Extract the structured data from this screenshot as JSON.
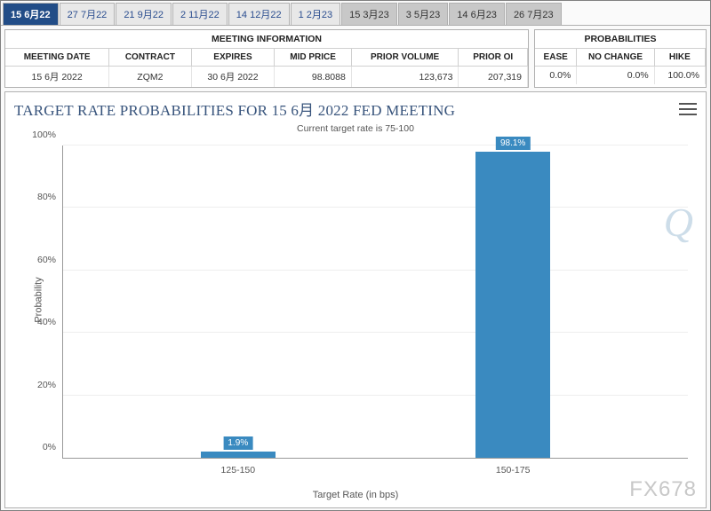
{
  "tabs": [
    {
      "label": "15 6月22",
      "state": "active"
    },
    {
      "label": "27 7月22",
      "state": "normal"
    },
    {
      "label": "21 9月22",
      "state": "normal"
    },
    {
      "label": "2 11月22",
      "state": "normal"
    },
    {
      "label": "14 12月22",
      "state": "normal"
    },
    {
      "label": "1 2月23",
      "state": "normal"
    },
    {
      "label": "15 3月23",
      "state": "alt"
    },
    {
      "label": "3 5月23",
      "state": "alt"
    },
    {
      "label": "14 6月23",
      "state": "alt"
    },
    {
      "label": "26 7月23",
      "state": "alt"
    }
  ],
  "meeting_info": {
    "title": "MEETING INFORMATION",
    "headers": [
      "MEETING DATE",
      "CONTRACT",
      "EXPIRES",
      "MID PRICE",
      "PRIOR VOLUME",
      "PRIOR OI"
    ],
    "row": [
      "15 6月 2022",
      "ZQM2",
      "30 6月 2022",
      "98.8088",
      "123,673",
      "207,319"
    ]
  },
  "probabilities": {
    "title": "PROBABILITIES",
    "headers": [
      "EASE",
      "NO CHANGE",
      "HIKE"
    ],
    "row": [
      "0.0%",
      "0.0%",
      "100.0%"
    ]
  },
  "chart": {
    "title": "TARGET RATE PROBABILITIES FOR 15 6月 2022 FED MEETING",
    "subtitle": "Current target rate is 75-100",
    "y_label": "Probability",
    "x_label": "Target Rate (in bps)",
    "y_ticks": [
      "0%",
      "20%",
      "40%",
      "60%",
      "80%",
      "100%"
    ],
    "y_max": 100,
    "bar_color": "#3a8ac0",
    "bar_width_pct": 12,
    "bars": [
      {
        "category": "125-150",
        "value": 1.9,
        "label": "1.9%",
        "x_pct": 28
      },
      {
        "category": "150-175",
        "value": 98.1,
        "label": "98.1%",
        "x_pct": 72
      }
    ],
    "grid_color": "#eeeeee",
    "axis_color": "#999999",
    "background": "#ffffff",
    "title_color": "#38547c",
    "title_fontsize": 17
  },
  "watermark_q": "Q",
  "watermark_fx": "FX678"
}
